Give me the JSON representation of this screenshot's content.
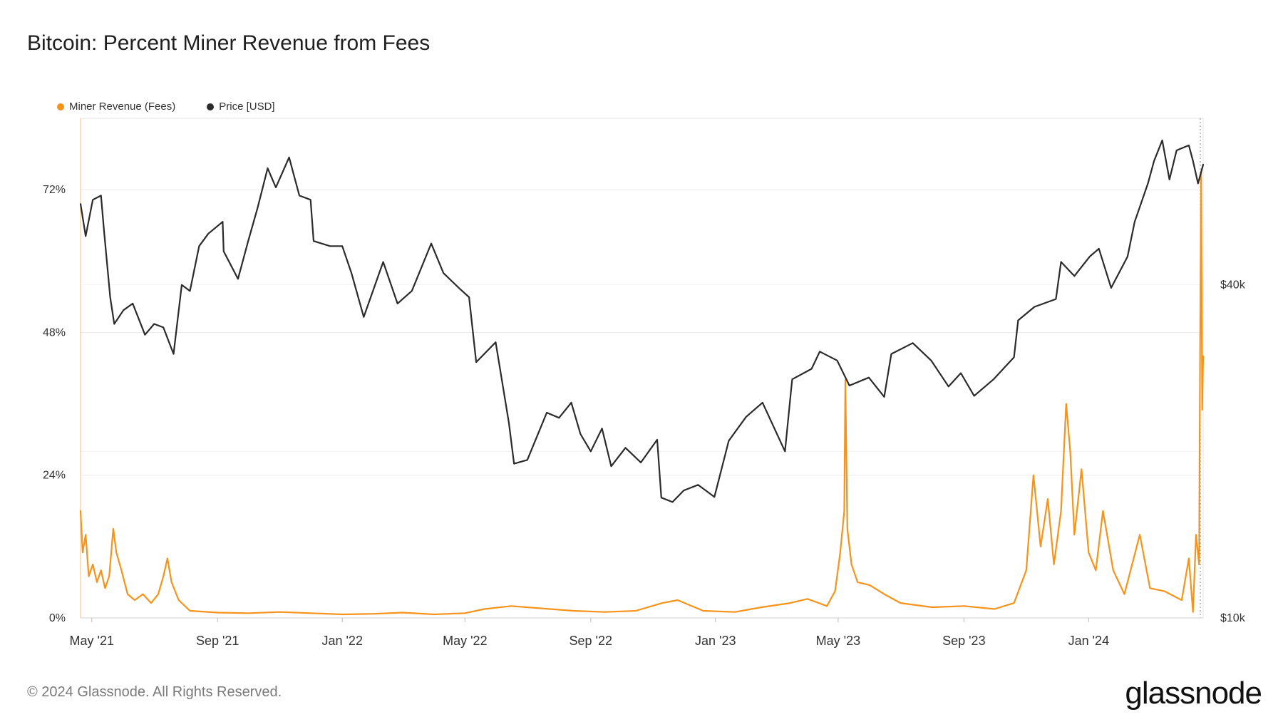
{
  "title": "Bitcoin: Percent Miner Revenue from Fees",
  "legend": [
    {
      "label": "Miner Revenue (Fees)",
      "color": "#f7931a"
    },
    {
      "label": "Price [USD]",
      "color": "#2b2b2b"
    }
  ],
  "footer": "© 2024 Glassnode. All Rights Reserved.",
  "brand": "glassnode",
  "chart_data": {
    "type": "line",
    "x_tick_labels": [
      "May '21",
      "Sep '21",
      "Jan '22",
      "May '22",
      "Sep '22",
      "Jan '23",
      "May '23",
      "Sep '23",
      "Jan '24"
    ],
    "x_tick_dates": [
      "2021-05-01",
      "2021-09-01",
      "2022-01-01",
      "2022-05-01",
      "2022-09-01",
      "2023-01-01",
      "2023-05-01",
      "2023-09-01",
      "2024-01-01"
    ],
    "xlim": [
      "2021-04-20",
      "2024-04-22"
    ],
    "left_axis": {
      "ticks": [
        0,
        24,
        48,
        72
      ],
      "tick_labels": [
        "0%",
        "24%",
        "48%",
        "72%"
      ],
      "ylim": [
        0,
        84
      ]
    },
    "right_axis": {
      "ticks": [
        10000,
        40000
      ],
      "tick_labels": [
        "$10k",
        "$40k"
      ],
      "scale": "log",
      "ylim": [
        10000,
        80000
      ]
    },
    "grid": true,
    "legend_position": "top-left",
    "series": [
      {
        "name": "Miner Revenue (Fees)",
        "axis": "left",
        "color": "#f7931a",
        "points": [
          [
            "2021-04-20",
            18
          ],
          [
            "2021-04-22",
            11
          ],
          [
            "2021-04-25",
            14
          ],
          [
            "2021-04-28",
            7
          ],
          [
            "2021-05-02",
            9
          ],
          [
            "2021-05-06",
            6
          ],
          [
            "2021-05-10",
            8
          ],
          [
            "2021-05-14",
            5
          ],
          [
            "2021-05-18",
            7
          ],
          [
            "2021-05-22",
            15
          ],
          [
            "2021-05-25",
            11
          ],
          [
            "2021-05-30",
            8
          ],
          [
            "2021-06-05",
            4
          ],
          [
            "2021-06-12",
            3
          ],
          [
            "2021-06-20",
            4
          ],
          [
            "2021-06-28",
            2.5
          ],
          [
            "2021-07-05",
            4
          ],
          [
            "2021-07-10",
            7
          ],
          [
            "2021-07-14",
            10
          ],
          [
            "2021-07-18",
            6
          ],
          [
            "2021-07-25",
            3
          ],
          [
            "2021-08-05",
            1.2
          ],
          [
            "2021-09-01",
            0.9
          ],
          [
            "2021-10-01",
            0.8
          ],
          [
            "2021-11-01",
            1.0
          ],
          [
            "2021-12-01",
            0.8
          ],
          [
            "2022-01-01",
            0.6
          ],
          [
            "2022-02-01",
            0.7
          ],
          [
            "2022-03-01",
            0.9
          ],
          [
            "2022-04-01",
            0.6
          ],
          [
            "2022-05-01",
            0.8
          ],
          [
            "2022-05-20",
            1.5
          ],
          [
            "2022-06-15",
            2.0
          ],
          [
            "2022-07-15",
            1.6
          ],
          [
            "2022-08-15",
            1.2
          ],
          [
            "2022-09-15",
            1.0
          ],
          [
            "2022-10-15",
            1.2
          ],
          [
            "2022-11-10",
            2.5
          ],
          [
            "2022-11-25",
            3.0
          ],
          [
            "2022-12-20",
            1.2
          ],
          [
            "2023-01-20",
            1.0
          ],
          [
            "2023-02-15",
            1.8
          ],
          [
            "2023-03-15",
            2.5
          ],
          [
            "2023-04-01",
            3.2
          ],
          [
            "2023-04-20",
            2.0
          ],
          [
            "2023-04-28",
            4.5
          ],
          [
            "2023-05-03",
            11.0
          ],
          [
            "2023-05-07",
            18.0
          ],
          [
            "2023-05-08",
            40.0
          ],
          [
            "2023-05-10",
            15.0
          ],
          [
            "2023-05-14",
            9.0
          ],
          [
            "2023-05-20",
            6.0
          ],
          [
            "2023-06-01",
            5.5
          ],
          [
            "2023-06-15",
            4.0
          ],
          [
            "2023-07-01",
            2.5
          ],
          [
            "2023-08-01",
            1.8
          ],
          [
            "2023-09-01",
            2.0
          ],
          [
            "2023-10-01",
            1.5
          ],
          [
            "2023-10-20",
            2.5
          ],
          [
            "2023-11-01",
            8.0
          ],
          [
            "2023-11-08",
            24.0
          ],
          [
            "2023-11-15",
            12.0
          ],
          [
            "2023-11-22",
            20.0
          ],
          [
            "2023-11-28",
            9.0
          ],
          [
            "2023-12-05",
            18.0
          ],
          [
            "2023-12-10",
            36.0
          ],
          [
            "2023-12-14",
            28.0
          ],
          [
            "2023-12-18",
            14.0
          ],
          [
            "2023-12-25",
            25.0
          ],
          [
            "2024-01-01",
            11.0
          ],
          [
            "2024-01-08",
            8.0
          ],
          [
            "2024-01-15",
            18.0
          ],
          [
            "2024-01-25",
            8.0
          ],
          [
            "2024-02-05",
            4.0
          ],
          [
            "2024-02-20",
            14.0
          ],
          [
            "2024-03-01",
            5.0
          ],
          [
            "2024-03-15",
            4.5
          ],
          [
            "2024-04-01",
            3.0
          ],
          [
            "2024-04-08",
            10.0
          ],
          [
            "2024-04-12",
            1.0
          ],
          [
            "2024-04-15",
            14.0
          ],
          [
            "2024-04-18",
            9.0
          ],
          [
            "2024-04-19",
            45.0
          ],
          [
            "2024-04-20",
            75.0
          ],
          [
            "2024-04-21",
            35.0
          ],
          [
            "2024-04-22",
            44.0
          ]
        ]
      },
      {
        "name": "Price [USD]",
        "axis": "right",
        "color": "#2b2b2b",
        "points": [
          [
            "2021-04-20",
            56000
          ],
          [
            "2021-04-25",
            49000
          ],
          [
            "2021-05-02",
            57000
          ],
          [
            "2021-05-10",
            58000
          ],
          [
            "2021-05-13",
            50000
          ],
          [
            "2021-05-19",
            38000
          ],
          [
            "2021-05-23",
            34000
          ],
          [
            "2021-06-01",
            36000
          ],
          [
            "2021-06-10",
            37000
          ],
          [
            "2021-06-22",
            32500
          ],
          [
            "2021-07-01",
            34000
          ],
          [
            "2021-07-10",
            33500
          ],
          [
            "2021-07-20",
            30000
          ],
          [
            "2021-07-28",
            40000
          ],
          [
            "2021-08-05",
            39000
          ],
          [
            "2021-08-14",
            47000
          ],
          [
            "2021-08-23",
            49500
          ],
          [
            "2021-09-06",
            52000
          ],
          [
            "2021-09-07",
            46000
          ],
          [
            "2021-09-21",
            41000
          ],
          [
            "2021-10-01",
            48000
          ],
          [
            "2021-10-10",
            55000
          ],
          [
            "2021-10-20",
            65000
          ],
          [
            "2021-10-28",
            60000
          ],
          [
            "2021-11-10",
            68000
          ],
          [
            "2021-11-20",
            58000
          ],
          [
            "2021-12-01",
            57000
          ],
          [
            "2021-12-04",
            48000
          ],
          [
            "2021-12-20",
            47000
          ],
          [
            "2022-01-01",
            47000
          ],
          [
            "2022-01-10",
            42000
          ],
          [
            "2022-01-22",
            35000
          ],
          [
            "2022-02-10",
            44000
          ],
          [
            "2022-02-24",
            37000
          ],
          [
            "2022-03-10",
            39000
          ],
          [
            "2022-03-29",
            47500
          ],
          [
            "2022-04-10",
            42000
          ],
          [
            "2022-04-25",
            39500
          ],
          [
            "2022-05-05",
            38000
          ],
          [
            "2022-05-12",
            29000
          ],
          [
            "2022-05-31",
            31500
          ],
          [
            "2022-06-13",
            22500
          ],
          [
            "2022-06-18",
            19000
          ],
          [
            "2022-07-01",
            19300
          ],
          [
            "2022-07-20",
            23500
          ],
          [
            "2022-08-01",
            23000
          ],
          [
            "2022-08-13",
            24500
          ],
          [
            "2022-08-22",
            21500
          ],
          [
            "2022-09-01",
            20000
          ],
          [
            "2022-09-12",
            22000
          ],
          [
            "2022-09-21",
            18800
          ],
          [
            "2022-10-05",
            20300
          ],
          [
            "2022-10-20",
            19100
          ],
          [
            "2022-11-05",
            21000
          ],
          [
            "2022-11-09",
            16500
          ],
          [
            "2022-11-20",
            16200
          ],
          [
            "2022-12-01",
            17000
          ],
          [
            "2022-12-15",
            17400
          ],
          [
            "2022-12-31",
            16550
          ],
          [
            "2023-01-14",
            20900
          ],
          [
            "2023-01-31",
            23100
          ],
          [
            "2023-02-16",
            24500
          ],
          [
            "2023-03-10",
            20000
          ],
          [
            "2023-03-17",
            27000
          ],
          [
            "2023-04-05",
            28200
          ],
          [
            "2023-04-13",
            30300
          ],
          [
            "2023-04-30",
            29200
          ],
          [
            "2023-05-12",
            26300
          ],
          [
            "2023-05-31",
            27200
          ],
          [
            "2023-06-15",
            25100
          ],
          [
            "2023-06-22",
            30000
          ],
          [
            "2023-07-13",
            31400
          ],
          [
            "2023-07-31",
            29200
          ],
          [
            "2023-08-17",
            26200
          ],
          [
            "2023-08-29",
            27700
          ],
          [
            "2023-09-11",
            25200
          ],
          [
            "2023-09-30",
            27000
          ],
          [
            "2023-10-20",
            29600
          ],
          [
            "2023-10-24",
            34500
          ],
          [
            "2023-11-09",
            36500
          ],
          [
            "2023-11-30",
            37700
          ],
          [
            "2023-12-05",
            44000
          ],
          [
            "2023-12-18",
            41500
          ],
          [
            "2024-01-02",
            45000
          ],
          [
            "2024-01-11",
            46500
          ],
          [
            "2024-01-23",
            39500
          ],
          [
            "2024-02-08",
            45000
          ],
          [
            "2024-02-15",
            52000
          ],
          [
            "2024-02-28",
            61000
          ],
          [
            "2024-03-05",
            67000
          ],
          [
            "2024-03-13",
            73000
          ],
          [
            "2024-03-20",
            62000
          ],
          [
            "2024-03-27",
            70000
          ],
          [
            "2024-04-08",
            71500
          ],
          [
            "2024-04-12",
            67000
          ],
          [
            "2024-04-17",
            61000
          ],
          [
            "2024-04-22",
            66000
          ]
        ]
      }
    ]
  }
}
